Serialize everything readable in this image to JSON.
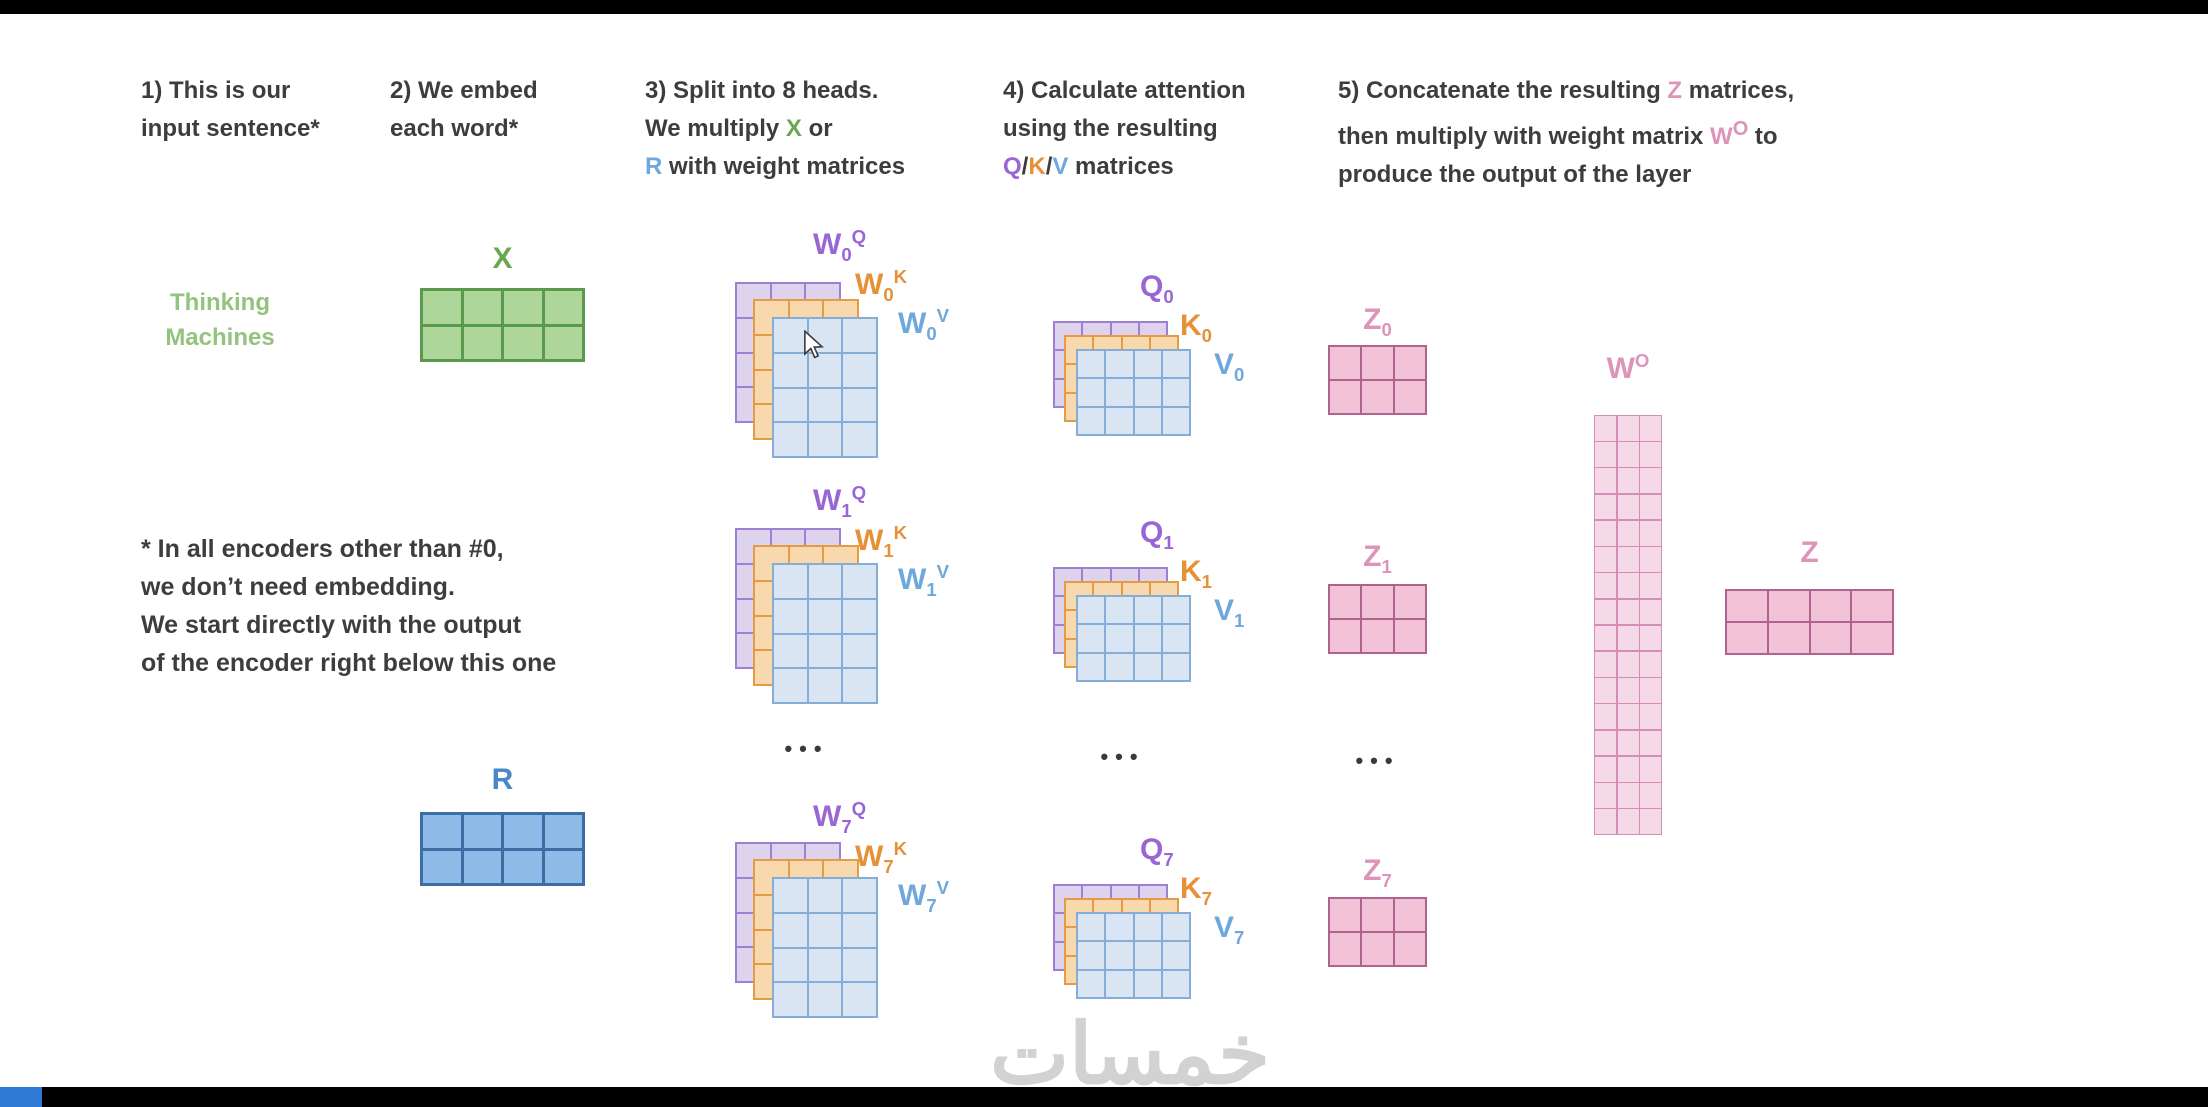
{
  "colors": {
    "green_text": "#6aa84f",
    "green_light_text": "#93c47d",
    "blue_text": "#6fa8dc",
    "blue_dark_text": "#4a86c8",
    "purple_text": "#9a66d4",
    "orange_text": "#e69138",
    "pink_text": "#dd93ba",
    "heading_text": "#3d3d3d",
    "green_fill": "#aed69b",
    "green_stroke": "#5a9a4c",
    "blue_fill": "#8fbbe8",
    "blue_stroke": "#3c6ea5",
    "purple_fill": "#ddd3ec",
    "purple_stroke": "#9f7fd1",
    "orange_fill": "#f8d9ae",
    "orange_stroke": "#e49b43",
    "lightblue_fill": "#d9e5f3",
    "lightblue_stroke": "#85aed6",
    "pink_fill": "#f2c3d7",
    "pink_stroke": "#b0638e",
    "pinklight_fill": "#f6d9e6",
    "pinklight_stroke": "#d48db4",
    "progress_blue": "#2e7bd6",
    "watermark": "#d2d2d2"
  },
  "steps": {
    "s1": {
      "l1": "1) This is our",
      "l2": "input sentence*"
    },
    "s2": {
      "l1": "2) We embed",
      "l2": "each word*"
    },
    "s3": {
      "l1": "3) Split into 8 heads.",
      "l2a": "We multiply ",
      "l2b": "X",
      "l2c": " or",
      "l3a": "R",
      "l3b": " with weight matrices"
    },
    "s4": {
      "l1": "4) Calculate attention",
      "l2": "using the resulting",
      "l3a": "Q",
      "l3b": "/",
      "l3c": "K",
      "l3d": "/",
      "l3e": "V",
      "l3f": " matrices"
    },
    "s5": {
      "l1a": "5) Concatenate the resulting ",
      "l1b": "Z",
      "l1c": " matrices,",
      "l2a": "then multiply with weight matrix ",
      "l2b": "W",
      "l2bsup": "O",
      "l2c": " to",
      "l3": "produce the output of the layer"
    }
  },
  "note": [
    "* In all encoders other than #0,",
    "we don’t need embedding.",
    "We start directly with the output",
    "of the encoder right below this one"
  ],
  "labels": {
    "x": "X",
    "r": "R",
    "w": "W",
    "q": "Q",
    "k": "K",
    "v": "V",
    "z": "Z",
    "o": "O",
    "thinking1": "Thinking",
    "thinking2": "Machines",
    "ellipsis": "•••"
  },
  "rows": [
    {
      "sub": "0"
    },
    {
      "sub": "1"
    },
    {
      "sub": "7"
    }
  ],
  "matrices": {
    "x": {
      "rows": 2,
      "cols": 4
    },
    "r": {
      "rows": 2,
      "cols": 4
    },
    "w": {
      "rows": 4,
      "cols": 3
    },
    "qkv": {
      "rows": 3,
      "cols": 4
    },
    "z_head": {
      "rows": 2,
      "cols": 3
    },
    "wo": {
      "rows": 16,
      "cols": 3
    },
    "z_final": {
      "rows": 2,
      "cols": 4
    }
  },
  "watermark_text": "خمسات"
}
